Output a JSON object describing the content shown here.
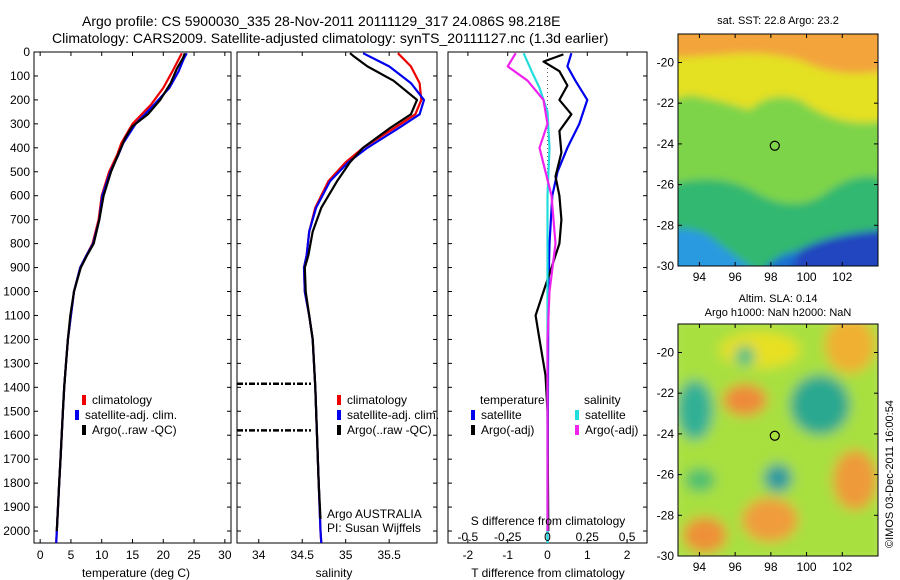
{
  "header": {
    "line1": "Argo profile: CS 5900030_335 28-Nov-2011 20111129_317 24.086S 98.218E",
    "line2": "Climatology: CARS2009. Satellite-adjusted climatology: synTS_20111127.nc (1.3d earlier)"
  },
  "colors": {
    "climatology": "#ee0000",
    "satellite": "#0000ee",
    "argo": "#000000",
    "sal_sat": "#22dddd",
    "sal_argo": "#ee22ee"
  },
  "chart_data": [
    {
      "type": "line",
      "xlabel": "temperature (deg C)",
      "xticks": [
        "0",
        "5",
        "10",
        "15",
        "20",
        "25",
        "30"
      ],
      "xlim": [
        -1,
        31
      ],
      "yticks": [
        "0",
        "100",
        "200",
        "300",
        "400",
        "500",
        "600",
        "700",
        "800",
        "900",
        "1000",
        "1100",
        "1200",
        "1300",
        "1400",
        "1500",
        "1600",
        "1700",
        "1800",
        "1900",
        "2000"
      ],
      "ylim": [
        0,
        2050
      ],
      "y_reversed": true,
      "legend": [
        "climatology",
        "satellite-adj. clim.",
        "Argo(..raw -QC)"
      ],
      "series": [
        {
          "name": "climatology",
          "color": "#ee0000",
          "points": [
            [
              23,
              5
            ],
            [
              22.5,
              30
            ],
            [
              21.5,
              80
            ],
            [
              20,
              150
            ],
            [
              18,
              220
            ],
            [
              15,
              300
            ],
            [
              13.2,
              380
            ],
            [
              12.5,
              430
            ],
            [
              11.2,
              500
            ],
            [
              10,
              600
            ],
            [
              9.5,
              700
            ],
            [
              8.5,
              800
            ],
            [
              7.5,
              850
            ],
            [
              6.5,
              900
            ],
            [
              5.5,
              1000
            ],
            [
              5,
              1100
            ],
            [
              4.5,
              1200
            ],
            [
              4.2,
              1300
            ],
            [
              3.9,
              1400
            ],
            [
              3.7,
              1500
            ],
            [
              3.5,
              1600
            ],
            [
              3.3,
              1700
            ],
            [
              3.1,
              1800
            ],
            [
              2.9,
              1900
            ],
            [
              2.7,
              2000
            ],
            [
              2.6,
              2050
            ]
          ]
        },
        {
          "name": "satellite-adj. clim.",
          "color": "#0000ee",
          "points": [
            [
              23.8,
              5
            ],
            [
              23.3,
              30
            ],
            [
              22.5,
              80
            ],
            [
              21,
              150
            ],
            [
              18.5,
              220
            ],
            [
              15.5,
              300
            ],
            [
              13.5,
              380
            ],
            [
              12.7,
              430
            ],
            [
              11.4,
              500
            ],
            [
              10.1,
              600
            ],
            [
              9.6,
              700
            ],
            [
              8.6,
              800
            ],
            [
              7.5,
              850
            ],
            [
              6.5,
              900
            ],
            [
              5.5,
              1000
            ],
            [
              5,
              1100
            ],
            [
              4.5,
              1200
            ],
            [
              4.2,
              1300
            ],
            [
              3.9,
              1400
            ],
            [
              3.7,
              1500
            ],
            [
              3.5,
              1600
            ],
            [
              3.3,
              1700
            ],
            [
              3.1,
              1800
            ],
            [
              2.9,
              1900
            ],
            [
              2.7,
              2000
            ],
            [
              2.6,
              2050
            ]
          ]
        },
        {
          "name": "Argo(..raw -QC)",
          "color": "#000000",
          "points": [
            [
              23.5,
              5
            ],
            [
              23.2,
              25
            ],
            [
              22.2,
              70
            ],
            [
              21.2,
              130
            ],
            [
              19.5,
              200
            ],
            [
              17.5,
              260
            ],
            [
              15,
              310
            ],
            [
              13.8,
              360
            ],
            [
              12.8,
              420
            ],
            [
              11.5,
              500
            ],
            [
              10.3,
              600
            ],
            [
              9.6,
              700
            ],
            [
              8.7,
              800
            ],
            [
              7.6,
              850
            ],
            [
              6.6,
              900
            ],
            [
              5.5,
              1000
            ],
            [
              4.9,
              1100
            ],
            [
              4.5,
              1200
            ],
            [
              4.2,
              1300
            ],
            [
              3.9,
              1400
            ],
            [
              3.7,
              1500
            ],
            [
              3.5,
              1600
            ],
            [
              3.3,
              1700
            ],
            [
              3.1,
              1800
            ],
            [
              2.9,
              1900
            ],
            [
              2.7,
              2000
            ]
          ]
        }
      ]
    },
    {
      "type": "line",
      "xlabel": "salinity",
      "xticks": [
        "34",
        "34.5",
        "35",
        "35.5"
      ],
      "xlim": [
        33.75,
        36.05
      ],
      "yticks": [],
      "ylim": [
        0,
        2050
      ],
      "y_reversed": true,
      "legend": [
        "climatology",
        "satellite-adj. clim.",
        "Argo(..raw -QC)"
      ],
      "annotation": [
        "Argo AUSTRALIA",
        "PI: Susan Wijffels"
      ],
      "series": [
        {
          "name": "climatology",
          "color": "#ee0000",
          "points": [
            [
              35.6,
              5
            ],
            [
              35.75,
              60
            ],
            [
              35.85,
              130
            ],
            [
              35.87,
              200
            ],
            [
              35.8,
              260
            ],
            [
              35.55,
              320
            ],
            [
              35.2,
              400
            ],
            [
              35,
              460
            ],
            [
              34.8,
              540
            ],
            [
              34.65,
              650
            ],
            [
              34.58,
              750
            ],
            [
              34.55,
              850
            ],
            [
              34.52,
              900
            ],
            [
              34.53,
              1000
            ],
            [
              34.58,
              1100
            ],
            [
              34.62,
              1200
            ],
            [
              34.65,
              1400
            ],
            [
              34.67,
              1600
            ],
            [
              34.69,
              1800
            ],
            [
              34.71,
              2000
            ],
            [
              34.72,
              2050
            ]
          ]
        },
        {
          "name": "satellite-adj. clim.",
          "color": "#0000ee",
          "points": [
            [
              35.2,
              5
            ],
            [
              35.5,
              60
            ],
            [
              35.75,
              130
            ],
            [
              35.9,
              200
            ],
            [
              35.85,
              260
            ],
            [
              35.6,
              320
            ],
            [
              35.25,
              400
            ],
            [
              35.03,
              460
            ],
            [
              34.82,
              540
            ],
            [
              34.66,
              650
            ],
            [
              34.58,
              750
            ],
            [
              34.55,
              850
            ],
            [
              34.52,
              900
            ],
            [
              34.53,
              1000
            ],
            [
              34.58,
              1100
            ],
            [
              34.62,
              1200
            ],
            [
              34.65,
              1400
            ],
            [
              34.67,
              1600
            ],
            [
              34.69,
              1800
            ],
            [
              34.71,
              2000
            ],
            [
              34.72,
              2050
            ]
          ]
        },
        {
          "name": "Argo(..raw -QC)",
          "color": "#000000",
          "points": [
            [
              35.05,
              5
            ],
            [
              35.1,
              20
            ],
            [
              35.25,
              60
            ],
            [
              35.55,
              120
            ],
            [
              35.82,
              200
            ],
            [
              35.75,
              260
            ],
            [
              35.5,
              320
            ],
            [
              35.2,
              400
            ],
            [
              35.05,
              460
            ],
            [
              34.9,
              540
            ],
            [
              34.72,
              650
            ],
            [
              34.62,
              750
            ],
            [
              34.57,
              850
            ],
            [
              34.53,
              900
            ],
            [
              34.54,
              1000
            ],
            [
              34.58,
              1100
            ],
            [
              34.62,
              1200
            ],
            [
              34.65,
              1400
            ],
            [
              34.67,
              1600
            ],
            [
              34.69,
              1800
            ],
            [
              34.71,
              1950
            ]
          ]
        }
      ],
      "dashed_segments": [
        [
          33.75,
          34.6,
          1385
        ],
        [
          33.75,
          34.6,
          1580
        ]
      ]
    },
    {
      "type": "line",
      "xlabel": "T difference from climatology",
      "top_xlabel": "S difference from climatology",
      "xticks": [
        "-2",
        "-1",
        "0",
        "1",
        "2"
      ],
      "xlim": [
        -2.5,
        2.5
      ],
      "top_xticks": [
        "-0.5",
        "-0.25",
        "0",
        "0.25",
        "0.5"
      ],
      "yticks": [],
      "ylim": [
        0,
        2050
      ],
      "y_reversed": true,
      "legend_title_left": "temperature",
      "legend_title_right": "salinity",
      "legend": [
        "satellite",
        "Argo(-adj)",
        "satellite",
        "Argo(-adj)"
      ],
      "series": [
        {
          "name": "temperature satellite",
          "color": "#0000ee",
          "points": [
            [
              0.6,
              5
            ],
            [
              0.5,
              60
            ],
            [
              0.7,
              120
            ],
            [
              1,
              200
            ],
            [
              0.8,
              300
            ],
            [
              0.5,
              400
            ],
            [
              0.25,
              500
            ],
            [
              0.12,
              600
            ],
            [
              0.05,
              800
            ],
            [
              0.02,
              1000
            ],
            [
              0.01,
              1500
            ],
            [
              0,
              2050
            ]
          ]
        },
        {
          "name": "temperature Argo(-adj)",
          "color": "#000000",
          "points": [
            [
              0.4,
              10
            ],
            [
              -0.1,
              40
            ],
            [
              0.3,
              80
            ],
            [
              0.5,
              140
            ],
            [
              0.3,
              200
            ],
            [
              0.6,
              260
            ],
            [
              0.3,
              330
            ],
            [
              0.35,
              420
            ],
            [
              0.2,
              520
            ],
            [
              0.3,
              600
            ],
            [
              0.35,
              700
            ],
            [
              0.3,
              800
            ],
            [
              0.1,
              900
            ],
            [
              -0.1,
              1000
            ],
            [
              -0.3,
              1100
            ],
            [
              -0.2,
              1200
            ],
            [
              -0.05,
              1350
            ],
            [
              0,
              1500
            ],
            [
              0.02,
              2000
            ]
          ]
        },
        {
          "name": "salinity satellite",
          "color": "#22dddd",
          "points": [
            [
              -0.6,
              5
            ],
            [
              -0.4,
              80
            ],
            [
              -0.2,
              150
            ],
            [
              0,
              250
            ],
            [
              0.05,
              400
            ],
            [
              0,
              600
            ],
            [
              0,
              2050
            ]
          ]
        },
        {
          "name": "salinity Argo(-adj)",
          "color": "#ee22ee",
          "points": [
            [
              -0.8,
              5
            ],
            [
              -1,
              60
            ],
            [
              -0.5,
              120
            ],
            [
              -0.1,
              200
            ],
            [
              0,
              300
            ],
            [
              -0.2,
              400
            ],
            [
              0.1,
              600
            ],
            [
              0.2,
              800
            ],
            [
              0.05,
              1000
            ],
            [
              0,
              1200
            ],
            [
              0,
              2000
            ]
          ]
        }
      ]
    },
    {
      "type": "heatmap",
      "title": "sat. SST: 22.8 Argo: 23.2",
      "xticks": [
        "94",
        "96",
        "98",
        "100",
        "102"
      ],
      "xlim": [
        92.8,
        104
      ],
      "yticks": [
        "-20",
        "-22",
        "-24",
        "-26",
        "-28",
        "-30"
      ],
      "ylim": [
        -30,
        -18.6
      ],
      "marker": [
        98.22,
        -24.09
      ]
    },
    {
      "type": "heatmap",
      "title": "Altim. SLA: 0.14",
      "subtitle": "Argo h1000: NaN h2000: NaN",
      "xticks": [
        "94",
        "96",
        "98",
        "100",
        "102"
      ],
      "xlim": [
        92.8,
        104
      ],
      "yticks": [
        "-20",
        "-22",
        "-24",
        "-26",
        "-28",
        "-30"
      ],
      "ylim": [
        -30,
        -18.6
      ],
      "marker": [
        98.22,
        -24.09
      ]
    }
  ],
  "side_label": "©IMOS 03-Dec-2011 16:00:54"
}
